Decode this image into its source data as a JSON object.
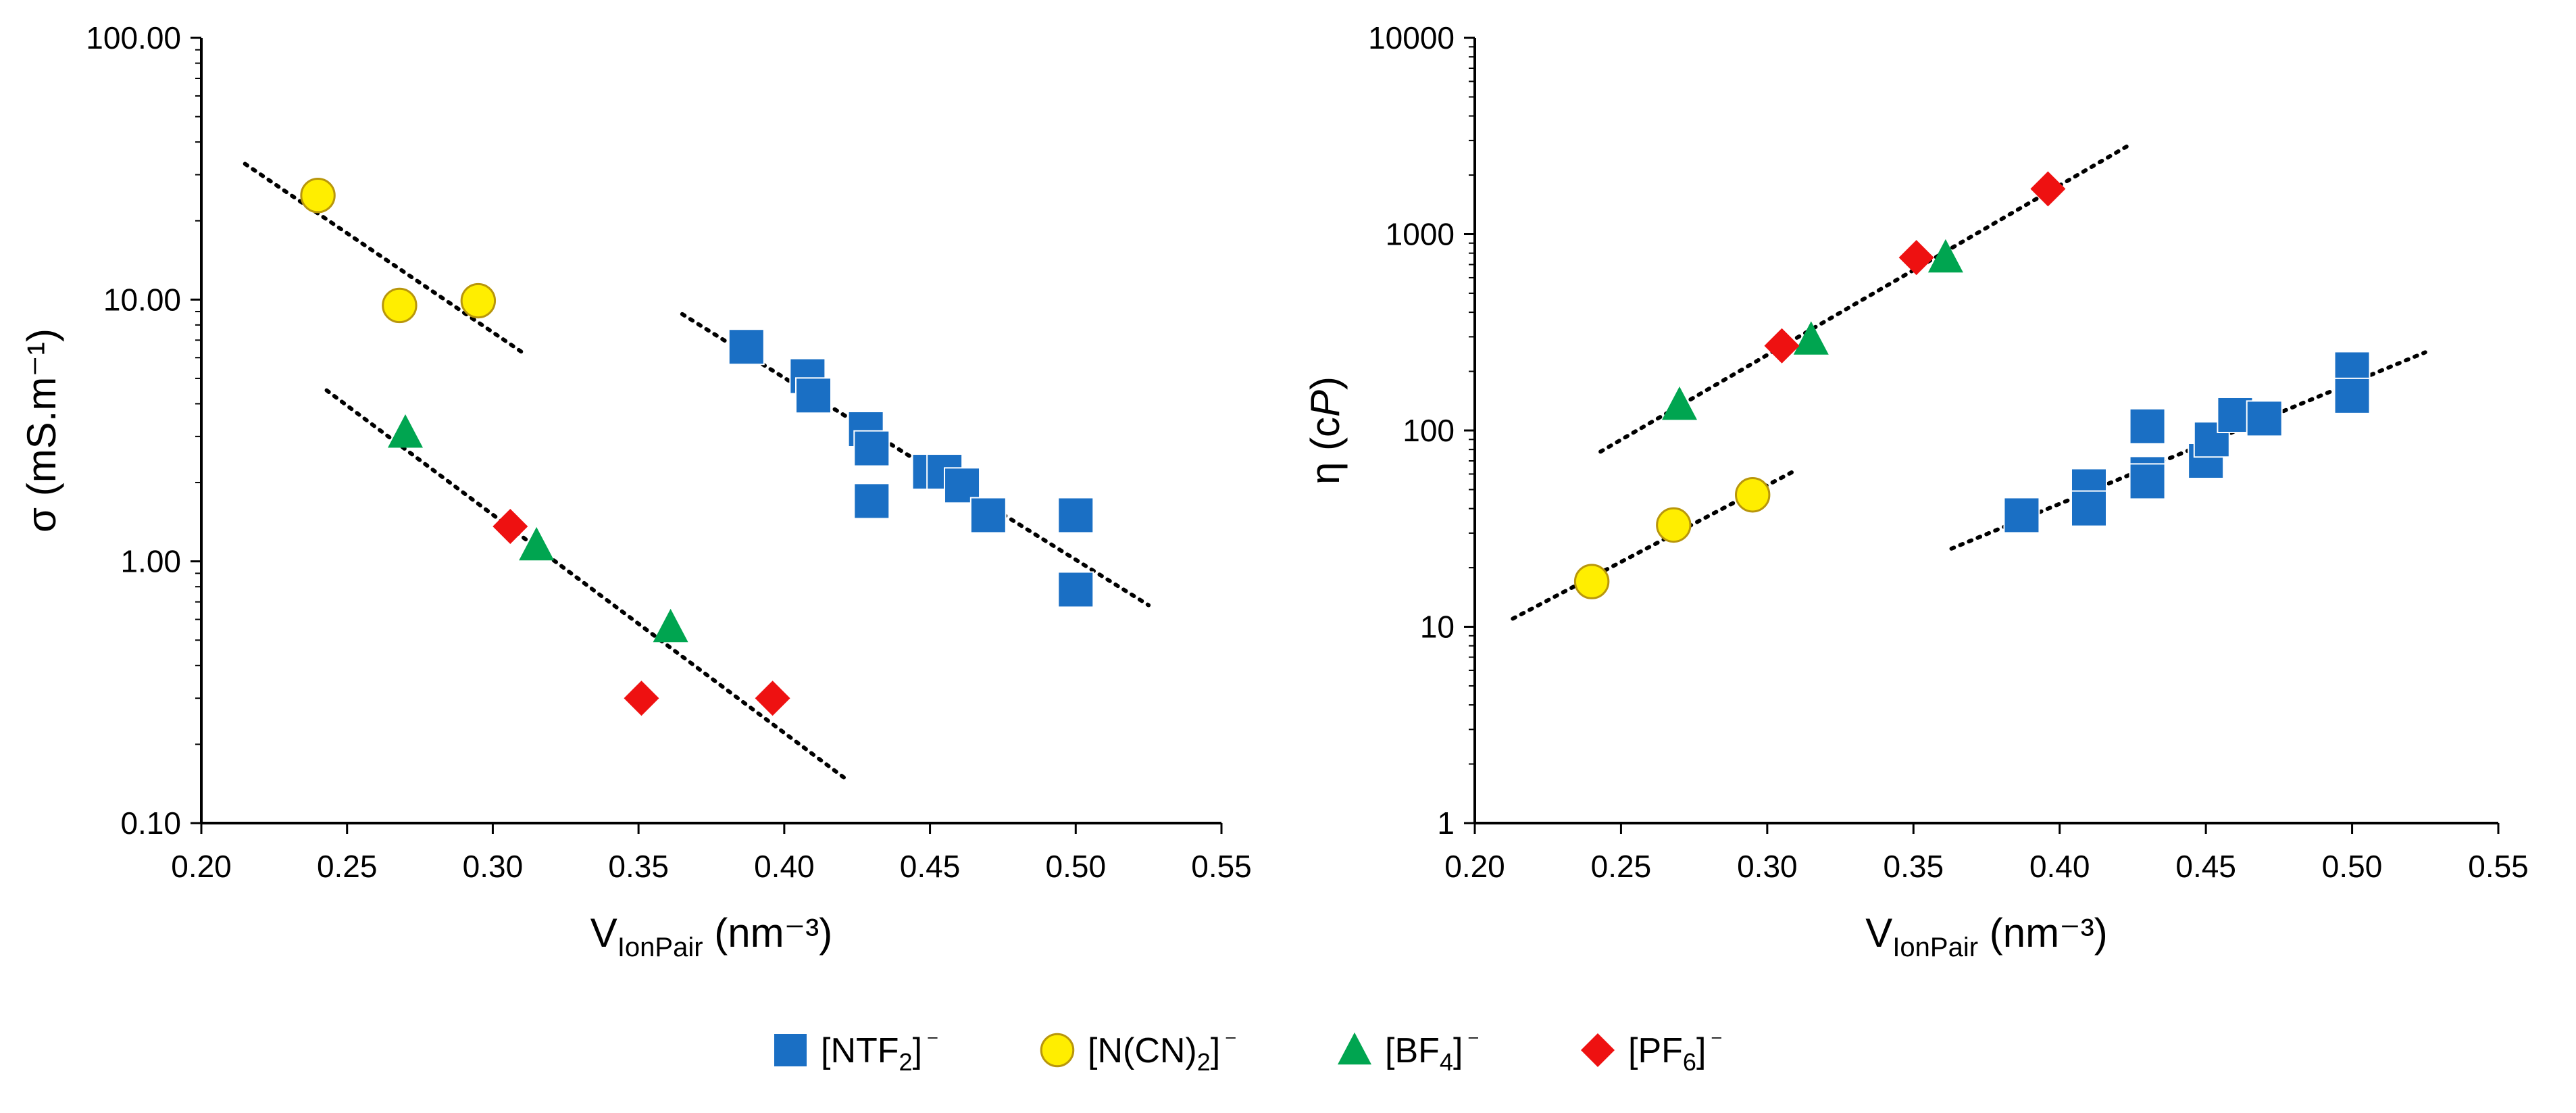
{
  "chart_data": [
    {
      "type": "scatter",
      "id": "conductivity",
      "yscale": "log",
      "xlim": [
        0.2,
        0.55
      ],
      "ylim": [
        0.1,
        100
      ],
      "xticks": [
        "0.20",
        "0.25",
        "0.30",
        "0.35",
        "0.40",
        "0.45",
        "0.50",
        "0.55"
      ],
      "yticks": [
        "0.10",
        "1.00",
        "10.00",
        "100.00"
      ],
      "xlabel": {
        "main": "V",
        "sub": "IonPair",
        "rest": " (nm⁻³)"
      },
      "ylabel": "σ (mS.m⁻¹)",
      "series": [
        {
          "name": "[NTF2]-",
          "marker": "square",
          "color": "#1a6fc4",
          "points": [
            [
              0.387,
              6.6
            ],
            [
              0.408,
              5.1
            ],
            [
              0.41,
              4.3
            ],
            [
              0.428,
              3.2
            ],
            [
              0.43,
              2.7
            ],
            [
              0.43,
              1.7
            ],
            [
              0.45,
              2.2
            ],
            [
              0.455,
              2.2
            ],
            [
              0.461,
              1.95
            ],
            [
              0.47,
              1.5
            ],
            [
              0.5,
              1.5
            ],
            [
              0.5,
              0.78
            ]
          ]
        },
        {
          "name": "[N(CN)2]-",
          "marker": "circle",
          "color": "#ffee00",
          "points": [
            [
              0.24,
              25
            ],
            [
              0.268,
              9.5
            ],
            [
              0.295,
              9.9
            ]
          ]
        },
        {
          "name": "[BF4]-",
          "marker": "triangle",
          "color": "#00a550",
          "points": [
            [
              0.27,
              3.1
            ],
            [
              0.315,
              1.15
            ],
            [
              0.361,
              0.56
            ]
          ]
        },
        {
          "name": "[PF6]-",
          "marker": "diamond",
          "color": "#ee1111",
          "points": [
            [
              0.306,
              1.36
            ],
            [
              0.351,
              0.3
            ],
            [
              0.396,
              0.3
            ]
          ]
        }
      ],
      "trendlines": [
        {
          "series": "[NTF2]-",
          "x": [
            0.365,
            0.525
          ],
          "y": [
            8.8,
            0.68
          ]
        },
        {
          "series": "[N(CN)2]-",
          "x": [
            0.215,
            0.31
          ],
          "y": [
            33,
            6.3
          ]
        },
        {
          "series": "[BF4]/[PF6]",
          "x": [
            0.243,
            0.422
          ],
          "y": [
            4.5,
            0.145
          ]
        }
      ]
    },
    {
      "type": "scatter",
      "id": "viscosity",
      "yscale": "log",
      "xlim": [
        0.2,
        0.55
      ],
      "ylim": [
        1,
        10000
      ],
      "xticks": [
        "0.20",
        "0.25",
        "0.30",
        "0.35",
        "0.40",
        "0.45",
        "0.50",
        "0.55"
      ],
      "yticks": [
        "1",
        "10",
        "100",
        "1000",
        "10000"
      ],
      "xlabel": {
        "main": "V",
        "sub": "IonPair",
        "rest": " (nm⁻³)"
      },
      "ylabel": {
        "main": "η (c",
        "italic": "P",
        "rest": ")"
      },
      "series": [
        {
          "name": "[NTF2]-",
          "marker": "square",
          "color": "#1a6fc4",
          "points": [
            [
              0.387,
              37
            ],
            [
              0.41,
              52
            ],
            [
              0.41,
              40
            ],
            [
              0.43,
              105
            ],
            [
              0.43,
              60
            ],
            [
              0.43,
              55
            ],
            [
              0.45,
              70
            ],
            [
              0.452,
              90
            ],
            [
              0.46,
              120
            ],
            [
              0.47,
              115
            ],
            [
              0.5,
              205
            ],
            [
              0.5,
              150
            ]
          ]
        },
        {
          "name": "[N(CN)2]-",
          "marker": "circle",
          "color": "#ffee00",
          "points": [
            [
              0.24,
              17
            ],
            [
              0.268,
              33
            ],
            [
              0.295,
              47
            ]
          ]
        },
        {
          "name": "[BF4]-",
          "marker": "triangle",
          "color": "#00a550",
          "points": [
            [
              0.27,
              135
            ],
            [
              0.315,
              290
            ],
            [
              0.361,
              760
            ]
          ]
        },
        {
          "name": "[PF6]-",
          "marker": "diamond",
          "color": "#ee1111",
          "points": [
            [
              0.305,
              270
            ],
            [
              0.351,
              760
            ],
            [
              0.396,
              1700
            ]
          ]
        }
      ],
      "trendlines": [
        {
          "series": "[BF4]/[PF6]",
          "x": [
            0.243,
            0.423
          ],
          "y": [
            78,
            2800
          ]
        },
        {
          "series": "[N(CN)2]-",
          "x": [
            0.213,
            0.31
          ],
          "y": [
            11,
            63
          ]
        },
        {
          "series": "[NTF2]-",
          "x": [
            0.363,
            0.525
          ],
          "y": [
            25,
            250
          ]
        }
      ]
    }
  ],
  "legend": [
    {
      "marker": "square",
      "color": "#1a6fc4",
      "pre": "[NTF",
      "sub": "2",
      "post": "]",
      "sup": "⁻"
    },
    {
      "marker": "circle",
      "color": "#ffee00",
      "pre": "[N(CN)",
      "sub": "2",
      "post": "]",
      "sup": "⁻"
    },
    {
      "marker": "triangle",
      "color": "#00a550",
      "pre": "[BF",
      "sub": "4",
      "post": "]",
      "sup": "⁻"
    },
    {
      "marker": "diamond",
      "color": "#ee1111",
      "pre": "[PF",
      "sub": "6",
      "post": "]",
      "sup": "⁻"
    }
  ]
}
